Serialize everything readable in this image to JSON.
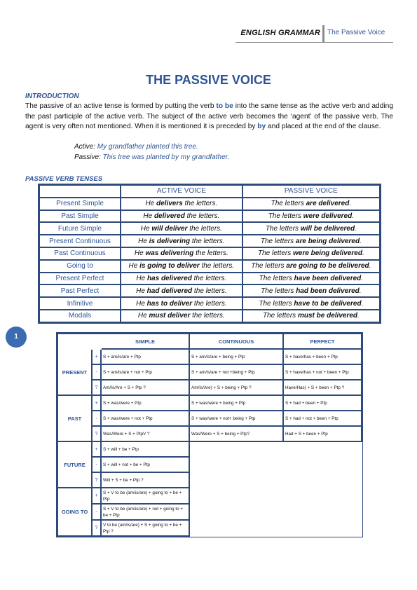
{
  "header": {
    "book": "ENGLISH GRAMMAR",
    "chapter": "The Passive Voice"
  },
  "title": "THE PASSIVE VOICE",
  "intro": {
    "heading": "INTRODUCTION",
    "p1": "The passive of an active tense is formed by putting the verb ",
    "kw1": "to be",
    "p2": " into the same tense as the active verb and adding the past participle of the active verb. The subject of the active verb becomes the ‘agent’ of the passive verb. The agent is very often not mentioned. When it is mentioned it is preceded by ",
    "kw2": "by",
    "p3": " and placed at the end of the clause.",
    "ex_active_label": "Active:",
    "ex_active": "My grandfather planted this tree.",
    "ex_passive_label": "Passive:",
    "ex_passive": "This tree was planted by my grandfather."
  },
  "tenses_heading": "PASSIVE VERB TENSES",
  "table1": {
    "headers": [
      "ACTIVE VOICE",
      "PASSIVE VOICE"
    ],
    "rows": [
      {
        "tense": "Present Simple",
        "a1": "He ",
        "ab": "delivers",
        "a2": " the letters.",
        "p1": "The letters ",
        "pb": "are delivered",
        "p2": "."
      },
      {
        "tense": "Past Simple",
        "a1": "He ",
        "ab": "delivered",
        "a2": " the letters.",
        "p1": "The letters ",
        "pb": "were delivered",
        "p2": "."
      },
      {
        "tense": "Future Simple",
        "a1": "He ",
        "ab": "will deliver",
        "a2": " the letters.",
        "p1": "The letters ",
        "pb": "will be delivered",
        "p2": "."
      },
      {
        "tense": "Present Continuous",
        "a1": "He ",
        "ab": "is delivering",
        "a2": " the letters.",
        "p1": "The letters ",
        "pb": "are being delivered",
        "p2": "."
      },
      {
        "tense": "Past Continuous",
        "a1": "He ",
        "ab": "was delivering",
        "a2": " the letters.",
        "p1": "The letters ",
        "pb": "were being delivered",
        "p2": "."
      },
      {
        "tense": "Going to",
        "a1": "He ",
        "ab": "is going to deliver",
        "a2": " the letters.",
        "p1": "The letters ",
        "pb": "are going to be delivered",
        "p2": "."
      },
      {
        "tense": "Present Perfect",
        "a1": "He ",
        "ab": "has delivered",
        "a2": " the letters.",
        "p1": "The letters ",
        "pb": "have been delivered",
        "p2": "."
      },
      {
        "tense": "Past Perfect",
        "a1": "He ",
        "ab": "had delivered",
        "a2": " the letters.",
        "p1": "The letters ",
        "pb": "had been delivered",
        "p2": "."
      },
      {
        "tense": "Infinitive",
        "a1": "He ",
        "ab": "has to deliver",
        "a2": " the letters.",
        "p1": "The letters ",
        "pb": "have to be delivered",
        "p2": "."
      },
      {
        "tense": "Modals",
        "a1": "He ",
        "ab": "must deliver",
        "a2": " the letters.",
        "p1": "The letters ",
        "pb": "must be delivered",
        "p2": "."
      }
    ]
  },
  "page_number": "1",
  "table2": {
    "headers": [
      "SIMPLE",
      "CONTINUOUS",
      "PERFECT"
    ],
    "signs": [
      "+",
      "-",
      "?"
    ],
    "present": {
      "label": "PRESENT",
      "rows": [
        [
          "S + am/is/are + Ptp",
          "S + am/is/are + being + Ptp",
          "S + have/has + been + Ptp"
        ],
        [
          "S + am/is/are +  not + Ptp",
          "S + am/is/are + not +being + Ptp",
          "S + have/has + not + been + Ptp"
        ],
        [
          "Am/Is/Are + S + Ptp ?",
          "Am/Is/Are) + S + being + Ptp ?",
          "Have/Has) + S + been + Ptp ?"
        ]
      ]
    },
    "past": {
      "label": "PAST",
      "rows": [
        [
          "S + was/were + Ptp",
          "S + was/were + being + Ptp",
          "S + had + been + Ptp"
        ],
        [
          "S + was/were + not + Ptp",
          "S + was/were + not+ being + Ptp",
          "S + had + not + been +  Ptp"
        ],
        [
          "Was/Were + S + PtpV ?",
          "Was/Were + S + being + Ptp?",
          "Had + S + been + Ptp"
        ]
      ]
    },
    "future": {
      "label": "FUTURE",
      "rows": [
        "S + will + be + Ptp",
        "S + will + not + be + Ptp",
        "Will + S + be + Ptp ?"
      ]
    },
    "going_to": {
      "label": "GOING TO",
      "rows": [
        "S + V to be (am/is/are) + going to + be + Ptp",
        "S + V to be (am/is/are) + not + going to + be + Ptp",
        "V to be (am/is/are) + S + going to + be + Ptp ?"
      ]
    }
  }
}
